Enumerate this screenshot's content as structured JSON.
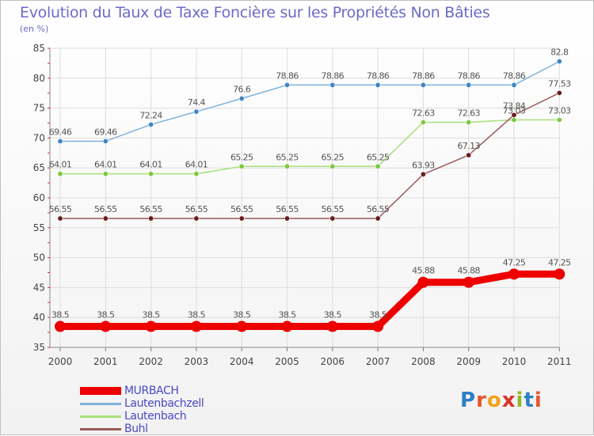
{
  "title": "Evolution du Taux de Taxe Foncière sur les Propriétés Non Bâties",
  "subtitle": "(en %)",
  "logo_text": "Proxiti",
  "chart_data": {
    "type": "line",
    "title": "Evolution du Taux de Taxe Foncière sur les Propriétés Non Bâties",
    "ylabel": "(en %)",
    "xlabel": "",
    "ylim": [
      35,
      85
    ],
    "yticks": [
      35,
      40,
      45,
      50,
      55,
      60,
      65,
      70,
      75,
      80,
      85
    ],
    "grid": true,
    "legend_position": "bottom-left",
    "categories": [
      "2000",
      "2001",
      "2002",
      "2003",
      "2004",
      "2005",
      "2006",
      "2007",
      "2008",
      "2009",
      "2010",
      "2011"
    ],
    "series": [
      {
        "name": "MURBACH",
        "color": "#ee0000",
        "marker_color": "#ee0000",
        "values": [
          38.5,
          38.5,
          38.5,
          38.5,
          38.5,
          38.5,
          38.5,
          38.5,
          45.88,
          45.88,
          47.25,
          47.25
        ],
        "labels": [
          "38.5",
          "38.5",
          "38.5",
          "38.5",
          "38.5",
          "38.5",
          "38.5",
          "38.5",
          "45.88",
          "45.88",
          "47.25",
          "47.25"
        ]
      },
      {
        "name": "Lautenbachzell",
        "color": "#7fb2de",
        "marker_color": "#3d86c6",
        "values": [
          69.46,
          69.46,
          72.24,
          74.4,
          76.6,
          78.86,
          78.86,
          78.86,
          78.86,
          78.86,
          78.86,
          82.8
        ],
        "labels": [
          "69.46",
          "69.46",
          "72.24",
          "74.4",
          "76.6",
          "78.86",
          "78.86",
          "78.86",
          "78.86",
          "78.86",
          "78.86",
          "82.8"
        ]
      },
      {
        "name": "Lautenbach",
        "color": "#a6e07a",
        "marker_color": "#7cc842",
        "values": [
          64.01,
          64.01,
          64.01,
          64.01,
          65.25,
          65.25,
          65.25,
          65.25,
          72.63,
          72.63,
          73.03,
          73.03
        ],
        "labels": [
          "64.01",
          "64.01",
          "64.01",
          "64.01",
          "65.25",
          "65.25",
          "65.25",
          "65.25",
          "72.63",
          "72.63",
          "73.03",
          "73.03"
        ]
      },
      {
        "name": "Buhl",
        "color": "#9a5a5a",
        "marker_color": "#6b1c1c",
        "values": [
          56.55,
          56.55,
          56.55,
          56.55,
          56.55,
          56.55,
          56.55,
          56.55,
          63.93,
          67.13,
          73.84,
          77.53
        ],
        "labels": [
          "56.55",
          "56.55",
          "56.55",
          "56.55",
          "56.55",
          "56.55",
          "56.55",
          "56.55",
          "63.93",
          "67.13",
          "73.84",
          "77.53"
        ]
      }
    ]
  }
}
